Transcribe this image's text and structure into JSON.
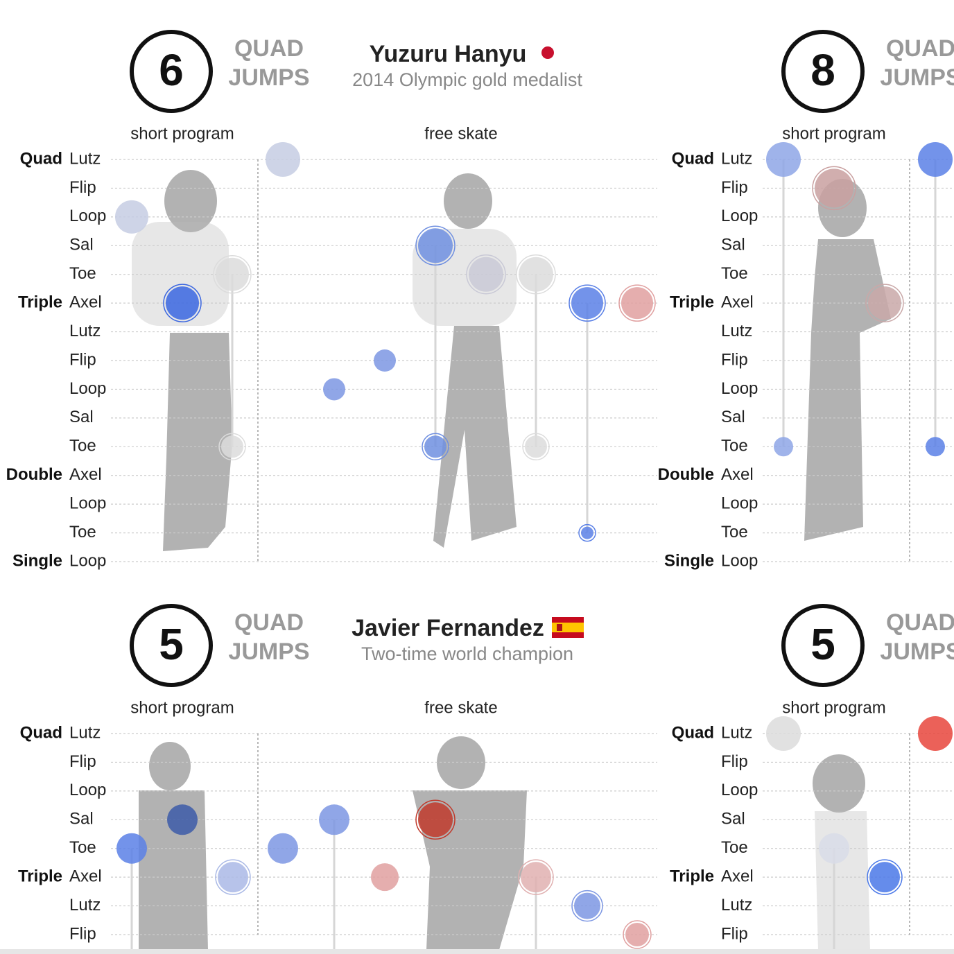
{
  "panels": [
    {
      "count": "6",
      "quad": [
        "QUAD",
        "JUMPS"
      ],
      "name": "Yuzuru Hanyu",
      "subtitle": "2014 Olympic gold medalist",
      "programs": [
        "short program",
        "free skate"
      ]
    },
    {
      "count": "8",
      "quad": [
        "QUAD",
        "JUMPS"
      ],
      "programs": [
        "short program"
      ]
    },
    {
      "count": "5",
      "quad": [
        "QUAD",
        "JUMPS"
      ],
      "name": "Javier Fernandez",
      "subtitle": "Two-time world champion",
      "programs": [
        "short program",
        "free skate"
      ]
    },
    {
      "count": "5",
      "quad": [
        "QUAD",
        "JUMPS"
      ],
      "programs": [
        "short program"
      ]
    }
  ],
  "rows": [
    {
      "group": "Quad",
      "jump": "Lutz"
    },
    {
      "jump": "Flip"
    },
    {
      "jump": "Loop"
    },
    {
      "jump": "Sal"
    },
    {
      "jump": "Toe"
    },
    {
      "group": "Triple",
      "jump": "Axel"
    },
    {
      "jump": "Lutz"
    },
    {
      "jump": "Flip"
    },
    {
      "jump": "Loop"
    },
    {
      "jump": "Sal"
    },
    {
      "jump": "Toe"
    },
    {
      "group": "Double",
      "jump": "Axel"
    },
    {
      "jump": "Loop"
    },
    {
      "jump": "Toe"
    },
    {
      "group": "Single",
      "jump": "Loop"
    }
  ]
}
